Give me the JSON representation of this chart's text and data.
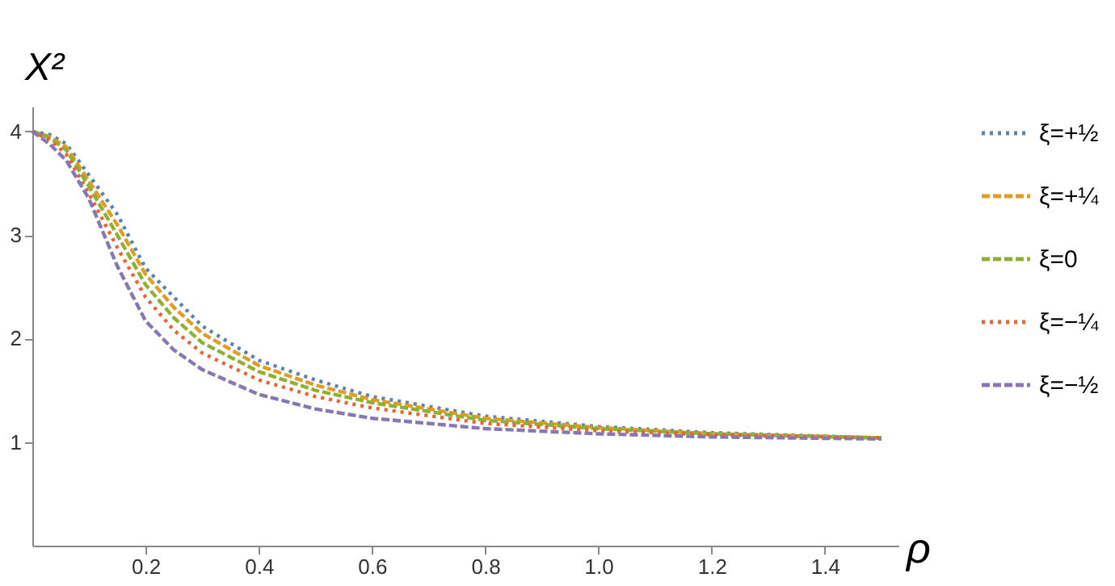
{
  "chart_data": {
    "type": "line",
    "xlabel": "ρ",
    "ylabel": "X²",
    "xlim": [
      0,
      1.53
    ],
    "ylim": [
      0,
      4.24
    ],
    "xticks": [
      0.2,
      0.4,
      0.6,
      0.8,
      {
        "value": 1,
        "label": "1.0"
      },
      1.2,
      1.4
    ],
    "yticks": [
      1,
      2,
      3,
      4
    ],
    "grid": false,
    "legend": "right",
    "marker": "none",
    "x": [
      0,
      0.03,
      0.06,
      0.1,
      0.15,
      0.2,
      0.25,
      0.3,
      0.4,
      0.5,
      0.6,
      0.8,
      1.0,
      1.2,
      1.5
    ],
    "series": [
      {
        "name": "ξ=+½",
        "color": "#5e81b5",
        "line_style": "dotted",
        "values": [
          4,
          3.97,
          3.88,
          3.58,
          3.2,
          2.68,
          2.4,
          2.12,
          1.79,
          1.6,
          1.44,
          1.25,
          1.15,
          1.09,
          1.04
        ]
      },
      {
        "name": "ξ=+¼",
        "color": "#e19c24",
        "line_style": "dashed",
        "values": [
          4,
          3.95,
          3.85,
          3.52,
          3.1,
          2.62,
          2.3,
          2.05,
          1.74,
          1.55,
          1.41,
          1.23,
          1.14,
          1.08,
          1.04
        ]
      },
      {
        "name": "ξ=0",
        "color": "#8fb032",
        "line_style": "dashed",
        "values": [
          4,
          3.94,
          3.82,
          3.47,
          3.0,
          2.52,
          2.2,
          1.96,
          1.68,
          1.5,
          1.38,
          1.21,
          1.13,
          1.08,
          1.04
        ]
      },
      {
        "name": "ξ=−¼",
        "color": "#eb6235",
        "line_style": "dotted",
        "values": [
          4,
          3.92,
          3.78,
          3.4,
          2.88,
          2.4,
          2.08,
          1.86,
          1.6,
          1.44,
          1.33,
          1.18,
          1.11,
          1.07,
          1.04
        ]
      },
      {
        "name": "ξ=−½",
        "color": "#8778b3",
        "line_style": "dashed",
        "values": [
          4,
          3.88,
          3.72,
          3.35,
          2.7,
          2.17,
          1.89,
          1.7,
          1.46,
          1.32,
          1.23,
          1.13,
          1.08,
          1.05,
          1.03
        ]
      }
    ]
  }
}
